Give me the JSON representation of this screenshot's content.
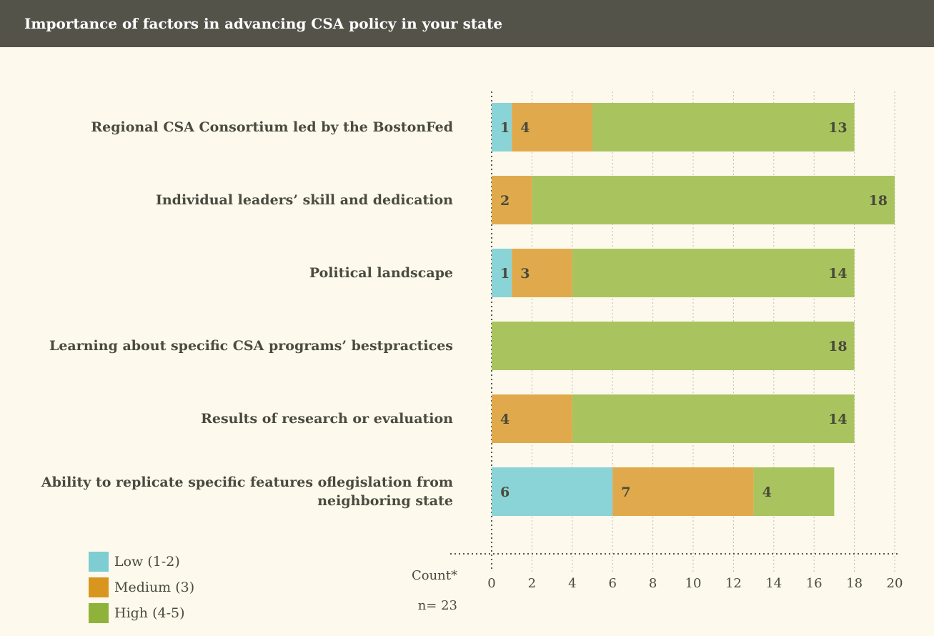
{
  "chart_data": {
    "type": "stacked_barh",
    "title": "Importance of factors in advancing CSA policy in your state",
    "categories": [
      "Regional CSA Consortium led by the BostonFed",
      "Individual leaders’ skill and dedication",
      "Political landscape",
      "Learning about specific CSA programs’ bestpractices",
      "Results of research or evaluation",
      "Ability to replicate specific features oflegislation from neighboring state"
    ],
    "series": [
      {
        "name": "Low (1-2)",
        "color": "#8ad3d6",
        "values": [
          1,
          null,
          1,
          null,
          null,
          6
        ]
      },
      {
        "name": "Medium (3)",
        "color": "#e0aa4c",
        "values": [
          4,
          2,
          3,
          null,
          4,
          7
        ]
      },
      {
        "name": "High (4-5)",
        "color": "#a9c45f",
        "values": [
          13,
          18,
          14,
          18,
          14,
          4
        ]
      }
    ],
    "legend_colors": [
      "#7dcdd2",
      "#d9961e",
      "#8fb33a"
    ],
    "xlabel": "Count*",
    "note": "n= 23",
    "xlim": [
      0,
      20
    ],
    "xticks": [
      0,
      2,
      4,
      6,
      8,
      10,
      12,
      14,
      16,
      18,
      20
    ],
    "grid": true
  }
}
